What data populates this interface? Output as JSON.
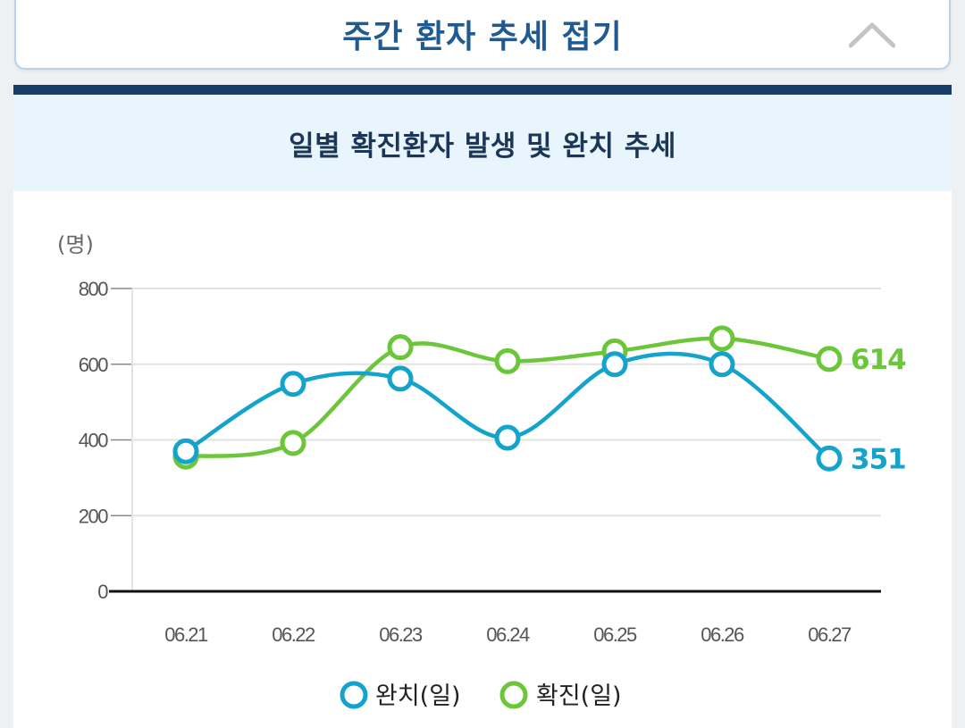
{
  "collapse_bar": {
    "title": "주간 환자 추세 접기"
  },
  "panel": {
    "title": "일별 확진환자 발생 및 완치 추세"
  },
  "colors": {
    "recovered": "#14a3cc",
    "confirmed": "#6cc63a",
    "grid": "#e3e3e3",
    "axis": "#111111"
  },
  "chart_data": {
    "type": "line",
    "title": "일별 확진환자 발생 및 완치 추세",
    "unit_label": "(명)",
    "categories": [
      "06.21",
      "06.22",
      "06.23",
      "06.24",
      "06.25",
      "06.26",
      "06.27"
    ],
    "ylim": [
      0,
      800
    ],
    "yticks": [
      0,
      200,
      400,
      600,
      800
    ],
    "grid": true,
    "legend_position": "bottom-center",
    "series": [
      {
        "name": "완치(일)",
        "key": "recovered",
        "values": [
          370,
          548,
          562,
          406,
          600,
          600,
          351
        ],
        "end_label": "351"
      },
      {
        "name": "확진(일)",
        "key": "confirmed",
        "values": [
          356,
          392,
          645,
          608,
          634,
          668,
          614
        ],
        "end_label": "614"
      }
    ]
  }
}
